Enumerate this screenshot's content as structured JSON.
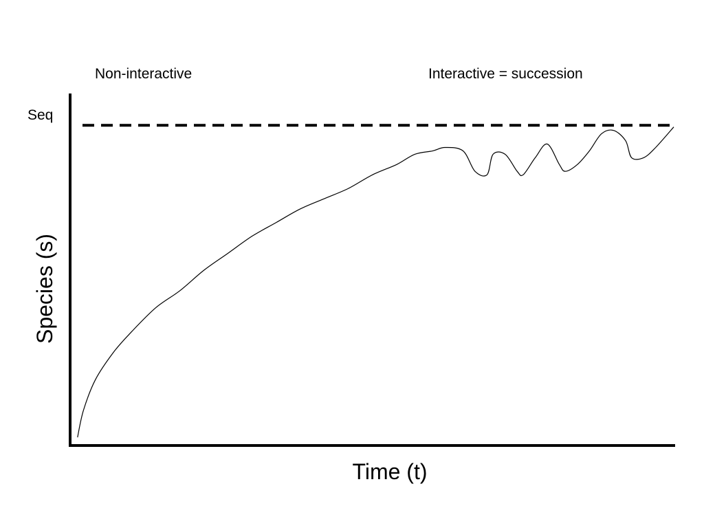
{
  "chart_data": {
    "type": "line",
    "title": "",
    "xlabel": "Time (t)",
    "ylabel": "Species (s)",
    "xlim": [
      0,
      100
    ],
    "ylim": [
      0,
      100
    ],
    "grid": false,
    "legend": "none",
    "annotations": {
      "left_phase": "Non-interactive",
      "right_phase": "Interactive = succession"
    },
    "reference_line": {
      "label": "Seq",
      "y": 93.5,
      "style": "dashed"
    },
    "series": [
      {
        "color": "#000000",
        "x": [
          1,
          2,
          4,
          7,
          10,
          14,
          18,
          22,
          26,
          30,
          34,
          38,
          42,
          46,
          50,
          54,
          57,
          60,
          62,
          65,
          67,
          69,
          70,
          72,
          74,
          75,
          77,
          79,
          81,
          82,
          84,
          86,
          88,
          90,
          92,
          93,
          95,
          97,
          100
        ],
        "y": [
          2,
          10,
          19,
          27,
          33,
          40,
          45,
          51,
          56,
          61,
          65,
          69,
          72,
          75,
          79,
          82,
          85,
          86,
          87,
          86,
          80,
          79,
          85,
          85,
          80,
          79,
          84,
          88,
          82,
          80,
          82,
          86,
          91,
          92,
          89,
          84,
          84,
          87,
          93
        ]
      }
    ],
    "colors": {
      "line": "#000000",
      "axes": "#000000",
      "background": "#ffffff"
    }
  }
}
